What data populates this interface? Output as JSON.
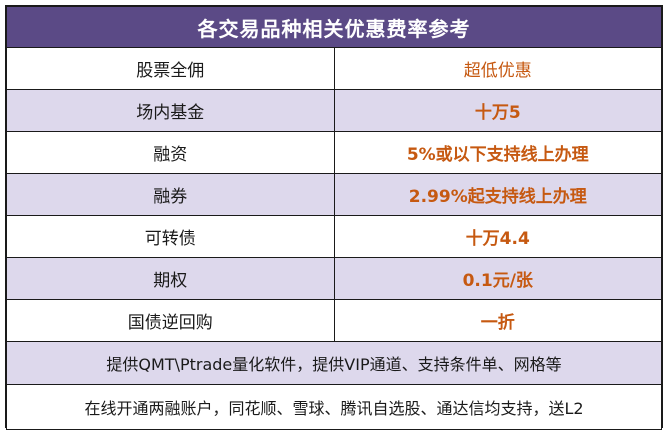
{
  "title": "各交易品种相关优惠费率参考",
  "rows": [
    {
      "label": "股票全佣",
      "value": "超低优惠"
    },
    {
      "label": "场内基金",
      "value": "十万5"
    },
    {
      "label": "融资",
      "value": "5%或以下支持线上办理"
    },
    {
      "label": "融券",
      "value": "2.99%起支持线上办理"
    },
    {
      "label": "可转债",
      "value": "十万4.4"
    },
    {
      "label": "期权",
      "value": "0.1元/张"
    },
    {
      "label": "国债逆回购",
      "value": "一折"
    }
  ],
  "notes": [
    "提供QMT\\Ptrade量化软件，提供VIP通道、支持条件单、网格等",
    "在线开通两融账户，同花顺、雪球、腾讯自选股、通达信均支持，送L2"
  ],
  "colors": {
    "header_bg": "#5b4a86",
    "stripe_bg": "#ddd8ec",
    "value_text": "#c65911"
  }
}
